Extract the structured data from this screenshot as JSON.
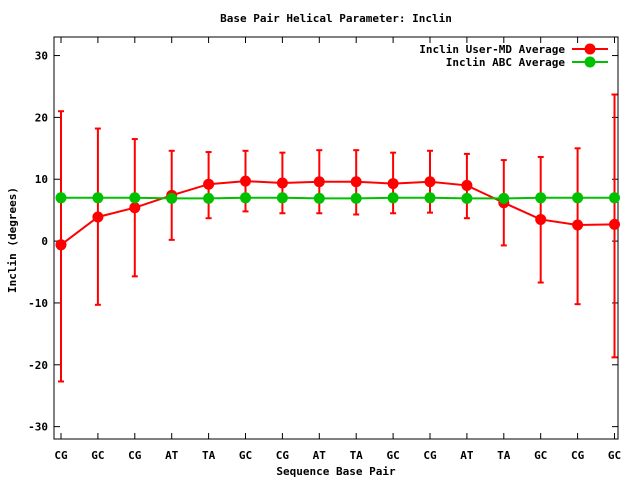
{
  "chart_data": {
    "type": "line",
    "title": "Base Pair Helical Parameter: Inclin",
    "xlabel": "Sequence Base Pair",
    "ylabel": "Inclin (degrees)",
    "categories": [
      "CG",
      "GC",
      "CG",
      "AT",
      "TA",
      "GC",
      "CG",
      "AT",
      "TA",
      "GC",
      "CG",
      "AT",
      "TA",
      "GC",
      "CG",
      "GC"
    ],
    "ylim": [
      -32,
      33
    ],
    "yticks": [
      -30,
      -20,
      -10,
      0,
      10,
      20,
      30
    ],
    "grid": false,
    "legend_position": "top-right",
    "series": [
      {
        "name": "Inclin User-MD Average",
        "color": "#ff0000",
        "values": [
          -0.6,
          3.9,
          5.4,
          7.4,
          9.2,
          9.7,
          9.4,
          9.6,
          9.6,
          9.3,
          9.6,
          9.0,
          6.2,
          3.5,
          2.6,
          2.7
        ],
        "error_low": [
          -22.7,
          -10.3,
          -5.7,
          0.2,
          3.7,
          4.8,
          4.5,
          4.5,
          4.3,
          4.5,
          4.6,
          3.7,
          -0.7,
          -6.7,
          -10.2,
          -18.8
        ],
        "error_high": [
          21.0,
          18.2,
          16.5,
          14.6,
          14.4,
          14.6,
          14.3,
          14.7,
          14.7,
          14.3,
          14.6,
          14.1,
          13.1,
          13.6,
          15.0,
          23.7
        ]
      },
      {
        "name": "Inclin ABC Average",
        "color": "#00c000",
        "values": [
          7.0,
          7.0,
          7.0,
          6.9,
          6.9,
          7.0,
          7.0,
          6.9,
          6.9,
          7.0,
          7.0,
          6.9,
          6.9,
          7.0,
          7.0,
          7.0
        ]
      }
    ]
  }
}
